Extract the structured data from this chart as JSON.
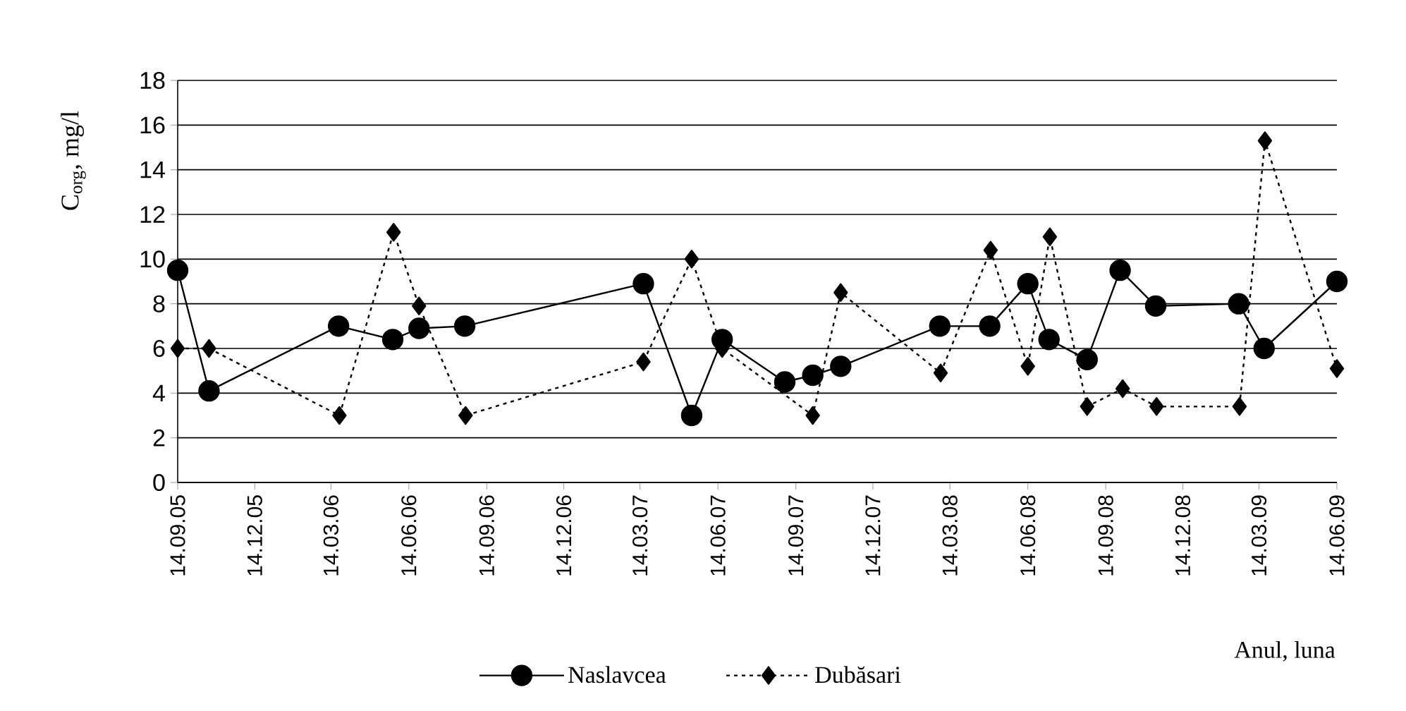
{
  "chart_data": {
    "type": "line",
    "xlabel": "Anul, luna",
    "ylabel": "C$_{org}$, mg/l",
    "xlim": [
      "2005-09-14",
      "2009-06-14"
    ],
    "xticks": [
      {
        "value": "2005-09-14",
        "label": "14.09.05"
      },
      {
        "value": "2005-12-14",
        "label": "14.12.05"
      },
      {
        "value": "2006-03-14",
        "label": "14.03.06"
      },
      {
        "value": "2006-06-14",
        "label": "14.06.06"
      },
      {
        "value": "2006-09-14",
        "label": "14.09.06"
      },
      {
        "value": "2006-12-14",
        "label": "14.12.06"
      },
      {
        "value": "2007-03-14",
        "label": "14.03.07"
      },
      {
        "value": "2007-06-14",
        "label": "14.06.07"
      },
      {
        "value": "2007-09-14",
        "label": "14.09.07"
      },
      {
        "value": "2007-12-14",
        "label": "14.12.07"
      },
      {
        "value": "2008-03-14",
        "label": "14.03.08"
      },
      {
        "value": "2008-06-14",
        "label": "14.06.08"
      },
      {
        "value": "2008-09-14",
        "label": "14.09.08"
      },
      {
        "value": "2008-12-14",
        "label": "14.12.08"
      },
      {
        "value": "2009-03-14",
        "label": "14.03.09"
      },
      {
        "value": "2009-06-14",
        "label": "14.06.09"
      }
    ],
    "ylim": [
      0,
      18
    ],
    "yticks": [
      0,
      2,
      4,
      6,
      8,
      10,
      12,
      14,
      16,
      18
    ],
    "grid": "y",
    "legend": "bottom",
    "series": [
      {
        "name": "Naslavcea",
        "color": "#000000",
        "marker": "circle",
        "line_style": "solid",
        "x": [
          "2005-09-14",
          "2005-10-21",
          "2006-03-23",
          "2006-05-26",
          "2006-06-26",
          "2006-08-19",
          "2007-03-18",
          "2007-05-14",
          "2007-06-19",
          "2007-09-01",
          "2007-10-04",
          "2007-11-06",
          "2008-03-02",
          "2008-04-30",
          "2008-06-14",
          "2008-07-09",
          "2008-08-23",
          "2008-10-01",
          "2008-11-12",
          "2009-02-18",
          "2009-03-20",
          "2009-06-14"
        ],
        "values": [
          9.5,
          4.1,
          7.0,
          6.4,
          6.9,
          7.0,
          8.9,
          3.0,
          6.4,
          4.5,
          4.8,
          5.2,
          7.0,
          7.0,
          8.9,
          6.4,
          5.5,
          9.5,
          7.9,
          8.0,
          6.0,
          9.0
        ]
      },
      {
        "name": "Dubăsari",
        "color": "#000000",
        "marker": "diamond",
        "line_style": "dotted",
        "x": [
          "2005-09-14",
          "2005-10-21",
          "2006-03-24",
          "2006-05-27",
          "2006-06-26",
          "2006-08-20",
          "2007-03-18",
          "2007-05-14",
          "2007-06-19",
          "2007-10-04",
          "2007-11-06",
          "2008-03-03",
          "2008-05-01",
          "2008-06-14",
          "2008-07-10",
          "2008-08-23",
          "2008-10-04",
          "2008-11-13",
          "2009-02-19",
          "2009-03-21",
          "2009-06-14"
        ],
        "values": [
          6.0,
          6.0,
          3.0,
          11.2,
          7.9,
          3.0,
          5.4,
          10.0,
          6.0,
          3.0,
          8.5,
          4.9,
          10.4,
          5.2,
          11.0,
          3.4,
          4.2,
          3.4,
          3.4,
          15.3,
          5.1
        ]
      }
    ]
  }
}
